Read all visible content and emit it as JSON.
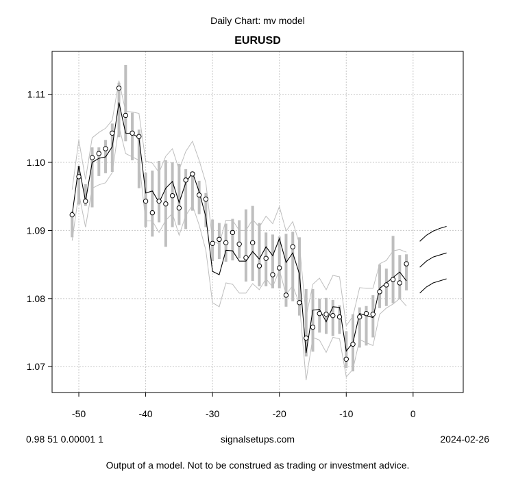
{
  "chart_data": {
    "type": "line",
    "supertitle": "Daily Chart: mv model",
    "title": "EURUSD",
    "xlim": [
      -54,
      7.5
    ],
    "ylim": [
      1.0662,
      1.1163
    ],
    "x_ticks": [
      -50,
      -40,
      -30,
      -20,
      -10,
      0
    ],
    "x_tick_labels": [
      "-50",
      "-40",
      "-30",
      "-20",
      "-10",
      "0"
    ],
    "y_ticks": [
      1.07,
      1.08,
      1.09,
      1.1,
      1.11
    ],
    "y_tick_labels": [
      "1.07",
      "1.08",
      "1.09",
      "1.10",
      "1.11"
    ],
    "grid": true,
    "x": [
      -51,
      -50,
      -49,
      -48,
      -47,
      -46,
      -45,
      -44,
      -43,
      -42,
      -41,
      -40,
      -39,
      -38,
      -37,
      -36,
      -35,
      -34,
      -33,
      -32,
      -31,
      -30,
      -29,
      -28,
      -27,
      -26,
      -25,
      -24,
      -23,
      -22,
      -21,
      -20,
      -19,
      -18,
      -17,
      -16,
      -15,
      -14,
      -13,
      -12,
      -11,
      -10,
      -9,
      -8,
      -7,
      -6,
      -5,
      -4,
      -3,
      -2,
      -1
    ],
    "series": [
      {
        "role": "observed",
        "values": [
          1.0923,
          1.0979,
          1.0943,
          1.1007,
          1.1013,
          1.102,
          1.1043,
          1.1109,
          1.1069,
          1.1043,
          1.1038,
          1.0943,
          1.0926,
          1.0943,
          1.0939,
          1.0951,
          1.0933,
          1.0974,
          1.0983,
          1.0952,
          1.0946,
          1.0881,
          1.0887,
          1.0882,
          1.0897,
          1.088,
          1.086,
          1.0882,
          1.0848,
          1.0859,
          1.0835,
          1.0845,
          1.0805,
          1.0876,
          1.0794,
          1.0742,
          1.0758,
          1.0778,
          1.0777,
          1.0775,
          1.0773,
          1.0711,
          1.0733,
          1.0773,
          1.0778,
          1.0777,
          1.081,
          1.082,
          1.0828,
          1.0823,
          1.0851
        ]
      },
      {
        "role": "high-low-range",
        "high": [
          1.0928,
          1.0995,
          1.0968,
          1.1022,
          1.1022,
          1.1033,
          1.1057,
          1.1117,
          1.1143,
          1.1073,
          1.1048,
          1.0985,
          1.0988,
          1.1002,
          1.1003,
          1.1,
          1.0998,
          1.099,
          1.0986,
          1.0973,
          1.0955,
          1.0916,
          1.0911,
          1.091,
          1.0917,
          1.0915,
          1.0931,
          1.0936,
          1.0911,
          1.0897,
          1.0894,
          1.0891,
          1.0895,
          1.0898,
          1.089,
          1.0814,
          1.0814,
          1.08,
          1.0801,
          1.0798,
          1.079,
          1.0752,
          1.0777,
          1.0787,
          1.0789,
          1.0805,
          1.085,
          1.0844,
          1.0892,
          1.0864,
          1.0865
        ],
        "low": [
          1.089,
          1.0938,
          1.0936,
          1.0934,
          1.098,
          1.0984,
          1.0986,
          1.1037,
          1.1031,
          1.1003,
          1.0962,
          1.0905,
          1.0891,
          1.0912,
          1.0876,
          1.0905,
          1.0908,
          1.0902,
          1.0929,
          1.0924,
          1.0905,
          1.0855,
          1.0858,
          1.0854,
          1.0856,
          1.0859,
          1.0825,
          1.0826,
          1.0818,
          1.0818,
          1.0815,
          1.0815,
          1.0788,
          1.0796,
          1.0775,
          1.0715,
          1.0722,
          1.075,
          1.0748,
          1.0745,
          1.0748,
          1.0698,
          1.0693,
          1.0728,
          1.0731,
          1.0743,
          1.0786,
          1.0789,
          1.0793,
          1.0799,
          1.0812
        ]
      },
      {
        "role": "model-mean",
        "values": [
          1.0923,
          1.0995,
          1.0943,
          1.1,
          1.1006,
          1.1008,
          1.1023,
          1.1088,
          1.1043,
          1.1042,
          1.1036,
          1.0955,
          1.0958,
          1.0941,
          1.0962,
          1.0972,
          1.0941,
          1.097,
          1.0985,
          1.0957,
          1.092,
          1.084,
          1.0835,
          1.0871,
          1.087,
          1.0855,
          1.0855,
          1.0869,
          1.0858,
          1.0876,
          1.0863,
          1.0888,
          1.0853,
          1.0867,
          1.0836,
          1.072,
          1.0783,
          1.0784,
          1.0766,
          1.0788,
          1.0787,
          1.0723,
          1.0735,
          1.0778,
          1.0775,
          1.0772,
          1.0815,
          1.0823,
          1.0831,
          1.0839,
          1.0826
        ]
      },
      {
        "role": "model-upper-band",
        "values": [
          1.096,
          1.1033,
          1.0975,
          1.1036,
          1.1044,
          1.105,
          1.1062,
          1.112,
          1.1075,
          1.1074,
          1.1072,
          1.1002,
          1.0999,
          1.0985,
          1.1009,
          1.102,
          1.0989,
          1.1016,
          1.1031,
          1.1003,
          1.097,
          1.0885,
          1.088,
          1.0915,
          1.0915,
          1.09,
          1.09,
          1.0916,
          1.0905,
          1.0921,
          1.091,
          1.0935,
          1.0899,
          1.0913,
          1.088,
          1.0773,
          1.0821,
          1.083,
          1.0813,
          1.0834,
          1.0832,
          1.076,
          1.0774,
          1.0816,
          1.0815,
          1.0815,
          1.0851,
          1.0856,
          1.087,
          1.0872,
          1.0868
        ]
      },
      {
        "role": "model-lower-band",
        "values": [
          1.0885,
          1.0955,
          1.0905,
          1.0962,
          1.0967,
          1.097,
          1.0985,
          1.1053,
          1.1013,
          1.1008,
          1.1003,
          1.0914,
          1.0914,
          1.0897,
          1.0915,
          1.0925,
          1.0893,
          1.0922,
          1.0937,
          1.0908,
          1.0871,
          1.0794,
          1.0788,
          1.0823,
          1.0821,
          1.0808,
          1.0808,
          1.0822,
          1.0813,
          1.0829,
          1.0817,
          1.0842,
          1.0806,
          1.0819,
          1.0792,
          1.068,
          1.0743,
          1.0739,
          1.0721,
          1.0743,
          1.0741,
          1.0685,
          1.0696,
          1.074,
          1.0735,
          1.0731,
          1.0777,
          1.0786,
          1.0792,
          1.08,
          1.0789
        ]
      },
      {
        "role": "forecast",
        "x": [
          1,
          2,
          3,
          4,
          5
        ],
        "upper": [
          1.0884,
          1.0893,
          1.0899,
          1.0903,
          1.0906
        ],
        "mean": [
          1.0846,
          1.0855,
          1.0861,
          1.0864,
          1.0867
        ],
        "lower": [
          1.0808,
          1.0817,
          1.0823,
          1.0826,
          1.0829
        ]
      }
    ],
    "colors": {
      "observed_point_fill": "#ffffff",
      "observed_point_stroke": "#000000",
      "range_bar": "#bebebe",
      "model_line": "#000000",
      "band_line": "#bebebe",
      "forecast_line": "#000000",
      "grid": "#c8c8c8",
      "box": "#000000"
    }
  },
  "footer": {
    "left": "0.98 51 0.00001 1",
    "center": "signalsetups.com",
    "right": "2024-02-26",
    "disclaimer": "Output of a model.  Not to be construed as trading or investment advice."
  }
}
